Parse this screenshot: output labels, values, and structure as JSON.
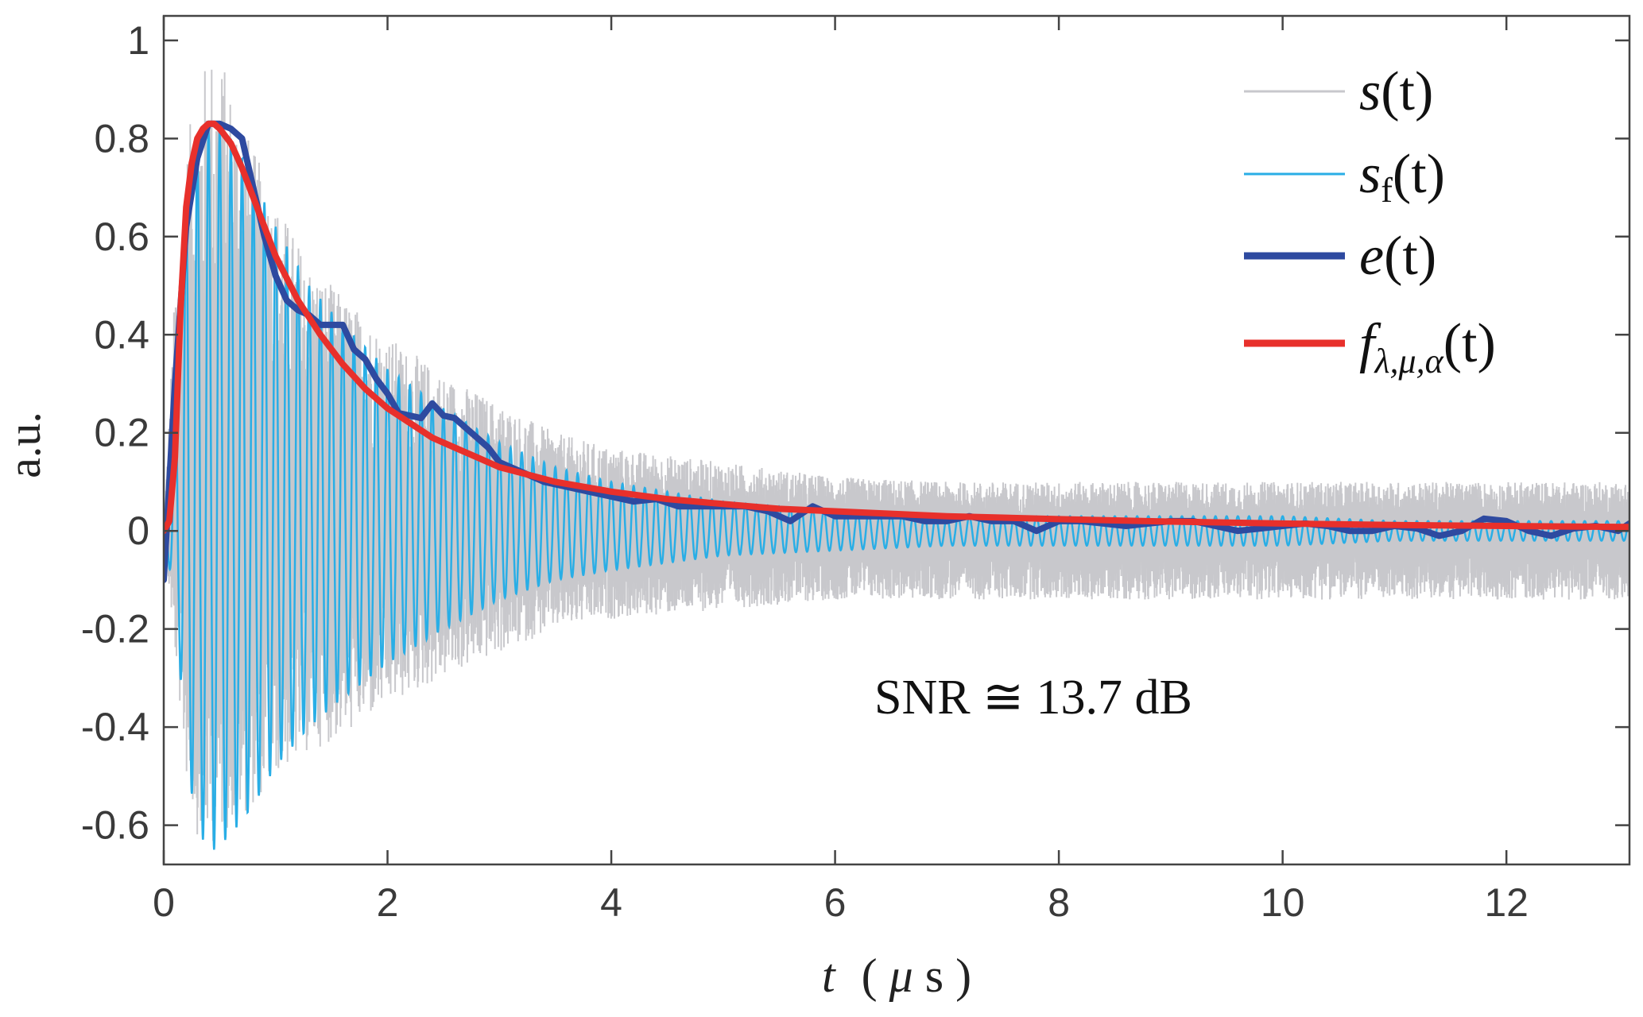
{
  "chart_data": {
    "type": "line",
    "title": "",
    "xlabel": {
      "var": "t",
      "unit_open": "(",
      "unit_mu": "μ",
      "unit_s": "s",
      "unit_close": ")"
    },
    "ylabel": "a.u.",
    "xlim": [
      0,
      13.1
    ],
    "ylim": [
      -0.68,
      1.05
    ],
    "xticks": [
      0,
      2,
      4,
      6,
      8,
      10,
      12
    ],
    "xtick_labels": [
      "0",
      "2",
      "4",
      "6",
      "8",
      "10",
      "12"
    ],
    "yticks": [
      -0.6,
      -0.4,
      -0.2,
      0,
      0.2,
      0.4,
      0.6,
      0.8,
      1
    ],
    "ytick_labels": [
      "-0.6",
      "-0.4",
      "-0.2",
      "0",
      "0.2",
      "0.4",
      "0.6",
      "0.8",
      "1"
    ],
    "grid": false,
    "legend_position": "top-right",
    "annotation": "SNR ≅ 13.7 dB",
    "series": [
      {
        "name": "s(t)",
        "legend_main": "s",
        "legend_sub": "",
        "legend_args": "(t)",
        "role": "raw noisy signal",
        "color": "#c8c8cc",
        "x": [
          0,
          0.1,
          0.2,
          0.3,
          0.45,
          0.6,
          0.8,
          1.0,
          1.3,
          1.6,
          2.0,
          2.5,
          3.0,
          3.5,
          4.0,
          5.0,
          6.0,
          7.0,
          8.0,
          9.0,
          10.0,
          11.0,
          12.0,
          13.1
        ],
        "upper": [
          0,
          0.5,
          0.78,
          0.92,
          1.0,
          0.92,
          0.78,
          0.68,
          0.55,
          0.48,
          0.4,
          0.32,
          0.26,
          0.2,
          0.17,
          0.14,
          0.11,
          0.1,
          0.1,
          0.1,
          0.1,
          0.1,
          0.1,
          0.1
        ],
        "lower": [
          0,
          -0.25,
          -0.5,
          -0.62,
          -0.64,
          -0.6,
          -0.56,
          -0.5,
          -0.45,
          -0.42,
          -0.36,
          -0.3,
          -0.25,
          -0.2,
          -0.18,
          -0.16,
          -0.14,
          -0.14,
          -0.14,
          -0.14,
          -0.14,
          -0.14,
          -0.14,
          -0.14
        ]
      },
      {
        "name": "s_f(t)",
        "legend_main": "s",
        "legend_sub": "f",
        "legend_args": "(t)",
        "role": "filtered signal (decaying oscillation)",
        "color": "#29aee6",
        "carrier_freq_mhz": 10,
        "x": [
          0,
          0.1,
          0.2,
          0.3,
          0.45,
          0.6,
          0.8,
          1.0,
          1.3,
          1.6,
          2.0,
          2.5,
          3.0,
          3.5,
          4.0,
          5.0,
          6.0,
          7.0,
          8.0,
          9.0,
          10.0,
          11.0,
          12.0,
          13.1
        ],
        "upper": [
          0,
          0.3,
          0.65,
          0.8,
          0.83,
          0.8,
          0.72,
          0.62,
          0.5,
          0.42,
          0.33,
          0.25,
          0.18,
          0.13,
          0.1,
          0.06,
          0.04,
          0.03,
          0.03,
          0.03,
          0.03,
          0.02,
          0.02,
          0.02
        ],
        "lower": [
          0,
          -0.15,
          -0.45,
          -0.62,
          -0.65,
          -0.62,
          -0.56,
          -0.48,
          -0.4,
          -0.34,
          -0.27,
          -0.2,
          -0.14,
          -0.1,
          -0.08,
          -0.05,
          -0.04,
          -0.03,
          -0.03,
          -0.03,
          -0.03,
          -0.02,
          -0.02,
          -0.02
        ]
      },
      {
        "name": "e(t)",
        "legend_main": "e",
        "legend_sub": "",
        "legend_args": "(t)",
        "role": "envelope",
        "color": "#2e4aa0",
        "x": [
          0,
          0.1,
          0.2,
          0.3,
          0.4,
          0.5,
          0.6,
          0.7,
          0.8,
          0.9,
          1.0,
          1.1,
          1.2,
          1.3,
          1.4,
          1.5,
          1.6,
          1.7,
          1.8,
          1.9,
          2.0,
          2.1,
          2.2,
          2.3,
          2.4,
          2.5,
          2.6,
          2.7,
          2.8,
          2.9,
          3.0,
          3.2,
          3.4,
          3.6,
          3.8,
          4.0,
          4.2,
          4.4,
          4.6,
          4.8,
          5.0,
          5.2,
          5.4,
          5.6,
          5.8,
          6.0,
          6.2,
          6.4,
          6.6,
          6.8,
          7.0,
          7.2,
          7.4,
          7.6,
          7.8,
          8.0,
          8.2,
          8.4,
          8.6,
          8.8,
          9.0,
          9.2,
          9.4,
          9.6,
          9.8,
          10.0,
          10.2,
          10.4,
          10.6,
          10.8,
          11.0,
          11.2,
          11.4,
          11.6,
          11.8,
          12.0,
          12.2,
          12.4,
          12.6,
          12.8,
          13.0,
          13.1
        ],
        "y": [
          -0.1,
          0.3,
          0.62,
          0.76,
          0.83,
          0.83,
          0.82,
          0.8,
          0.7,
          0.6,
          0.52,
          0.47,
          0.45,
          0.44,
          0.42,
          0.42,
          0.42,
          0.37,
          0.35,
          0.31,
          0.28,
          0.24,
          0.235,
          0.23,
          0.26,
          0.235,
          0.23,
          0.21,
          0.19,
          0.17,
          0.14,
          0.12,
          0.1,
          0.09,
          0.08,
          0.07,
          0.06,
          0.065,
          0.05,
          0.05,
          0.05,
          0.05,
          0.04,
          0.02,
          0.05,
          0.03,
          0.03,
          0.03,
          0.03,
          0.02,
          0.02,
          0.03,
          0.02,
          0.02,
          0.0,
          0.02,
          0.02,
          0.015,
          0.01,
          0.015,
          0.02,
          0.02,
          0.01,
          0.0,
          0.005,
          0.01,
          0.015,
          0.01,
          0.0,
          0.0,
          0.01,
          0.005,
          -0.01,
          0.0,
          0.025,
          0.02,
          0.0,
          -0.01,
          0.005,
          0.01,
          0.0,
          0.015
        ]
      },
      {
        "name": "f_{λ,μ,α}(t)",
        "legend_main": "f",
        "legend_sub": "λ,μ,α",
        "legend_args": "(t)",
        "role": "fitted model",
        "color": "#e8302b",
        "x": [
          0,
          0.05,
          0.1,
          0.15,
          0.2,
          0.25,
          0.3,
          0.35,
          0.4,
          0.45,
          0.5,
          0.6,
          0.7,
          0.8,
          0.9,
          1.0,
          1.2,
          1.4,
          1.6,
          1.8,
          2.0,
          2.2,
          2.4,
          2.6,
          2.8,
          3.0,
          3.5,
          4.0,
          4.5,
          5.0,
          5.5,
          6.0,
          6.5,
          7.0,
          7.5,
          8.0,
          9.0,
          10.0,
          11.0,
          12.0,
          13.1
        ],
        "y": [
          0,
          0.02,
          0.15,
          0.45,
          0.66,
          0.75,
          0.8,
          0.82,
          0.83,
          0.83,
          0.82,
          0.79,
          0.74,
          0.68,
          0.62,
          0.56,
          0.47,
          0.4,
          0.34,
          0.29,
          0.25,
          0.22,
          0.19,
          0.17,
          0.15,
          0.13,
          0.1,
          0.08,
          0.065,
          0.055,
          0.045,
          0.04,
          0.035,
          0.03,
          0.027,
          0.024,
          0.019,
          0.015,
          0.012,
          0.01,
          0.008
        ]
      }
    ]
  }
}
